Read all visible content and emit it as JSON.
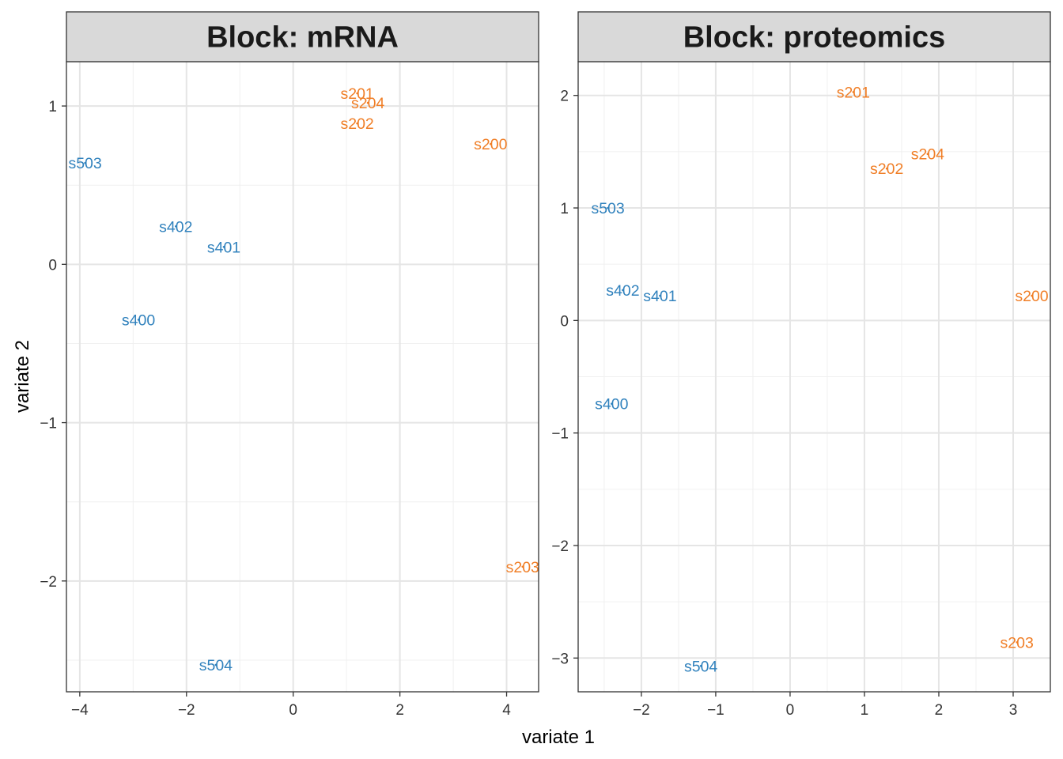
{
  "xlabel": "variate 1",
  "ylabel": "variate 2",
  "colors": {
    "group_blue": "#3182BD",
    "group_orange": "#F07E26"
  },
  "chart_data": [
    {
      "type": "scatter",
      "title": "Block: mRNA",
      "xlim": [
        -4.25,
        4.6
      ],
      "ylim": [
        -2.7,
        1.28
      ],
      "xticks": [
        -4,
        -2,
        0,
        2,
        4
      ],
      "yticks": [
        -2,
        -1,
        0,
        1
      ],
      "points": [
        {
          "label": "s201",
          "x": 1.2,
          "y": 1.08,
          "group": "orange"
        },
        {
          "label": "s204",
          "x": 1.4,
          "y": 1.02,
          "group": "orange"
        },
        {
          "label": "s202",
          "x": 1.2,
          "y": 0.89,
          "group": "orange"
        },
        {
          "label": "s200",
          "x": 3.7,
          "y": 0.76,
          "group": "orange"
        },
        {
          "label": "s503",
          "x": -3.9,
          "y": 0.64,
          "group": "blue"
        },
        {
          "label": "s402",
          "x": -2.2,
          "y": 0.24,
          "group": "blue"
        },
        {
          "label": "s401",
          "x": -1.3,
          "y": 0.11,
          "group": "blue"
        },
        {
          "label": "s400",
          "x": -2.9,
          "y": -0.35,
          "group": "blue"
        },
        {
          "label": "s203",
          "x": 4.3,
          "y": -1.91,
          "group": "orange"
        },
        {
          "label": "s504",
          "x": -1.45,
          "y": -2.53,
          "group": "blue"
        }
      ]
    },
    {
      "type": "scatter",
      "title": "Block: proteomics",
      "xlim": [
        -2.85,
        3.5
      ],
      "ylim": [
        -3.3,
        2.3
      ],
      "xticks": [
        -2,
        -1,
        0,
        1,
        2,
        3
      ],
      "yticks": [
        -3,
        -2,
        -1,
        0,
        1,
        2
      ],
      "points": [
        {
          "label": "s201",
          "x": 0.85,
          "y": 2.03,
          "group": "orange"
        },
        {
          "label": "s204",
          "x": 1.85,
          "y": 1.48,
          "group": "orange"
        },
        {
          "label": "s202",
          "x": 1.3,
          "y": 1.35,
          "group": "orange"
        },
        {
          "label": "s503",
          "x": -2.45,
          "y": 1.0,
          "group": "blue"
        },
        {
          "label": "s402",
          "x": -2.25,
          "y": 0.27,
          "group": "blue"
        },
        {
          "label": "s401",
          "x": -1.75,
          "y": 0.22,
          "group": "blue"
        },
        {
          "label": "s200",
          "x": 3.25,
          "y": 0.22,
          "group": "orange"
        },
        {
          "label": "s400",
          "x": -2.4,
          "y": -0.74,
          "group": "blue"
        },
        {
          "label": "s203",
          "x": 3.05,
          "y": -2.86,
          "group": "orange"
        },
        {
          "label": "s504",
          "x": -1.2,
          "y": -3.07,
          "group": "blue"
        }
      ]
    }
  ]
}
